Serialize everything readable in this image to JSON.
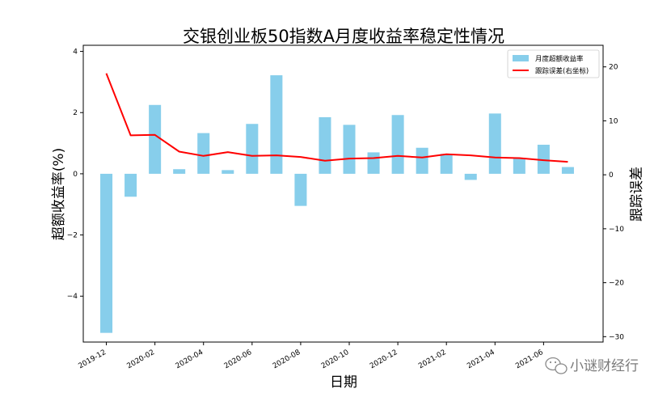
{
  "chart_data": {
    "type": "bar",
    "title": "交银创业板50指数A月度收益率稳定性情况",
    "xlabel": "日期",
    "ylabel": "超额收益率(%)",
    "y2label": "跟踪误差",
    "categories": [
      "2019-12",
      "2020-01",
      "2020-02",
      "2020-03",
      "2020-04",
      "2020-05",
      "2020-06",
      "2020-07",
      "2020-08",
      "2020-09",
      "2020-10",
      "2020-11",
      "2020-12",
      "2021-01",
      "2021-02",
      "2021-03",
      "2021-04",
      "2021-05",
      "2021-06",
      "2021-07"
    ],
    "x_tick_labels": [
      "2019-12",
      "2020-02",
      "2020-04",
      "2020-06",
      "2020-08",
      "2020-10",
      "2020-12",
      "2021-02",
      "2021-04",
      "2021-06"
    ],
    "series": [
      {
        "name": "月度超额收益率",
        "type": "bar",
        "axis": "left",
        "color": "#87ceeb",
        "values": [
          -5.2,
          -0.75,
          2.25,
          0.15,
          1.33,
          0.12,
          1.63,
          3.22,
          -1.05,
          1.85,
          1.6,
          0.7,
          1.92,
          0.85,
          0.65,
          -0.2,
          1.97,
          0.5,
          0.95,
          0.22
        ]
      },
      {
        "name": "跟踪误差(右坐标)",
        "type": "line",
        "axis": "right",
        "color": "#ff0000",
        "values": [
          18.8,
          7.3,
          7.4,
          4.3,
          3.5,
          4.2,
          3.5,
          3.6,
          3.3,
          2.6,
          3.0,
          3.1,
          3.5,
          3.2,
          3.8,
          3.6,
          3.2,
          3.1,
          2.7,
          2.4
        ]
      }
    ],
    "ylim": [
      -5.5,
      4.2
    ],
    "y_ticks": [
      -4,
      -2,
      0,
      2,
      4
    ],
    "y2lim": [
      -31,
      24
    ],
    "y2_ticks": [
      -30,
      -20,
      -10,
      0,
      10,
      20
    ],
    "legend_position": "top-right",
    "grid": false
  },
  "watermark": {
    "text": "小谜财经行",
    "icon": "wechat-icon"
  }
}
